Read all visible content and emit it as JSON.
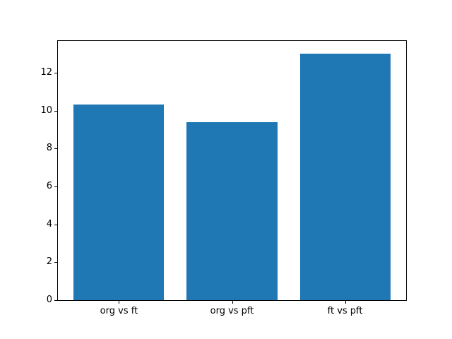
{
  "chart_data": {
    "type": "bar",
    "categories": [
      "org vs ft",
      "org vs pft",
      "ft vs pft"
    ],
    "values": [
      10.3,
      9.4,
      13.0
    ],
    "yticks": [
      0,
      2,
      4,
      6,
      8,
      10,
      12
    ],
    "ylim": [
      0,
      13.67
    ],
    "xlim": [
      -0.54,
      2.54
    ],
    "bar_width": 0.8,
    "grid": false,
    "legend": null,
    "colors": {
      "bar": "#1f77b4",
      "background": "#ffffff",
      "axis": "#000000"
    }
  }
}
